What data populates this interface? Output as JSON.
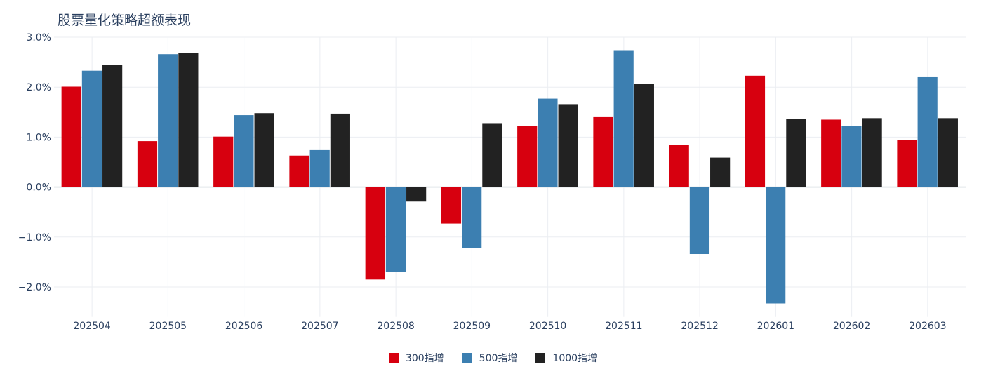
{
  "chart_data": {
    "type": "bar",
    "title": "股票量化策略超额表现",
    "xlabel": "",
    "ylabel": "",
    "ylim": [
      -2.6,
      3.0
    ],
    "yticks": [
      3.0,
      2.0,
      1.0,
      0.0,
      -1.0,
      -2.0
    ],
    "ytick_labels": [
      "3.0%",
      "2.0%",
      "1.0%",
      "0.0%",
      "−1.0%",
      "−2.0%"
    ],
    "categories": [
      "202504",
      "202505",
      "202506",
      "202507",
      "202508",
      "202509",
      "202510",
      "202511",
      "202512",
      "202601",
      "202602",
      "202603"
    ],
    "series": [
      {
        "name": "300指增",
        "color": "#d7000f",
        "values": [
          2.01,
          0.92,
          1.01,
          0.63,
          -1.85,
          -0.73,
          1.22,
          1.4,
          0.84,
          2.23,
          1.35,
          0.94
        ]
      },
      {
        "name": "500指增",
        "color": "#3c7fb1",
        "values": [
          2.33,
          2.66,
          1.44,
          0.74,
          -1.7,
          -1.22,
          1.77,
          2.74,
          -1.34,
          -2.33,
          1.22,
          2.2
        ]
      },
      {
        "name": "1000指增",
        "color": "#222222",
        "values": [
          2.44,
          2.69,
          1.48,
          1.47,
          -0.29,
          1.28,
          1.66,
          2.07,
          0.59,
          1.37,
          1.38,
          1.38
        ]
      }
    ],
    "legend_position": "bottom-center",
    "grid": true
  }
}
